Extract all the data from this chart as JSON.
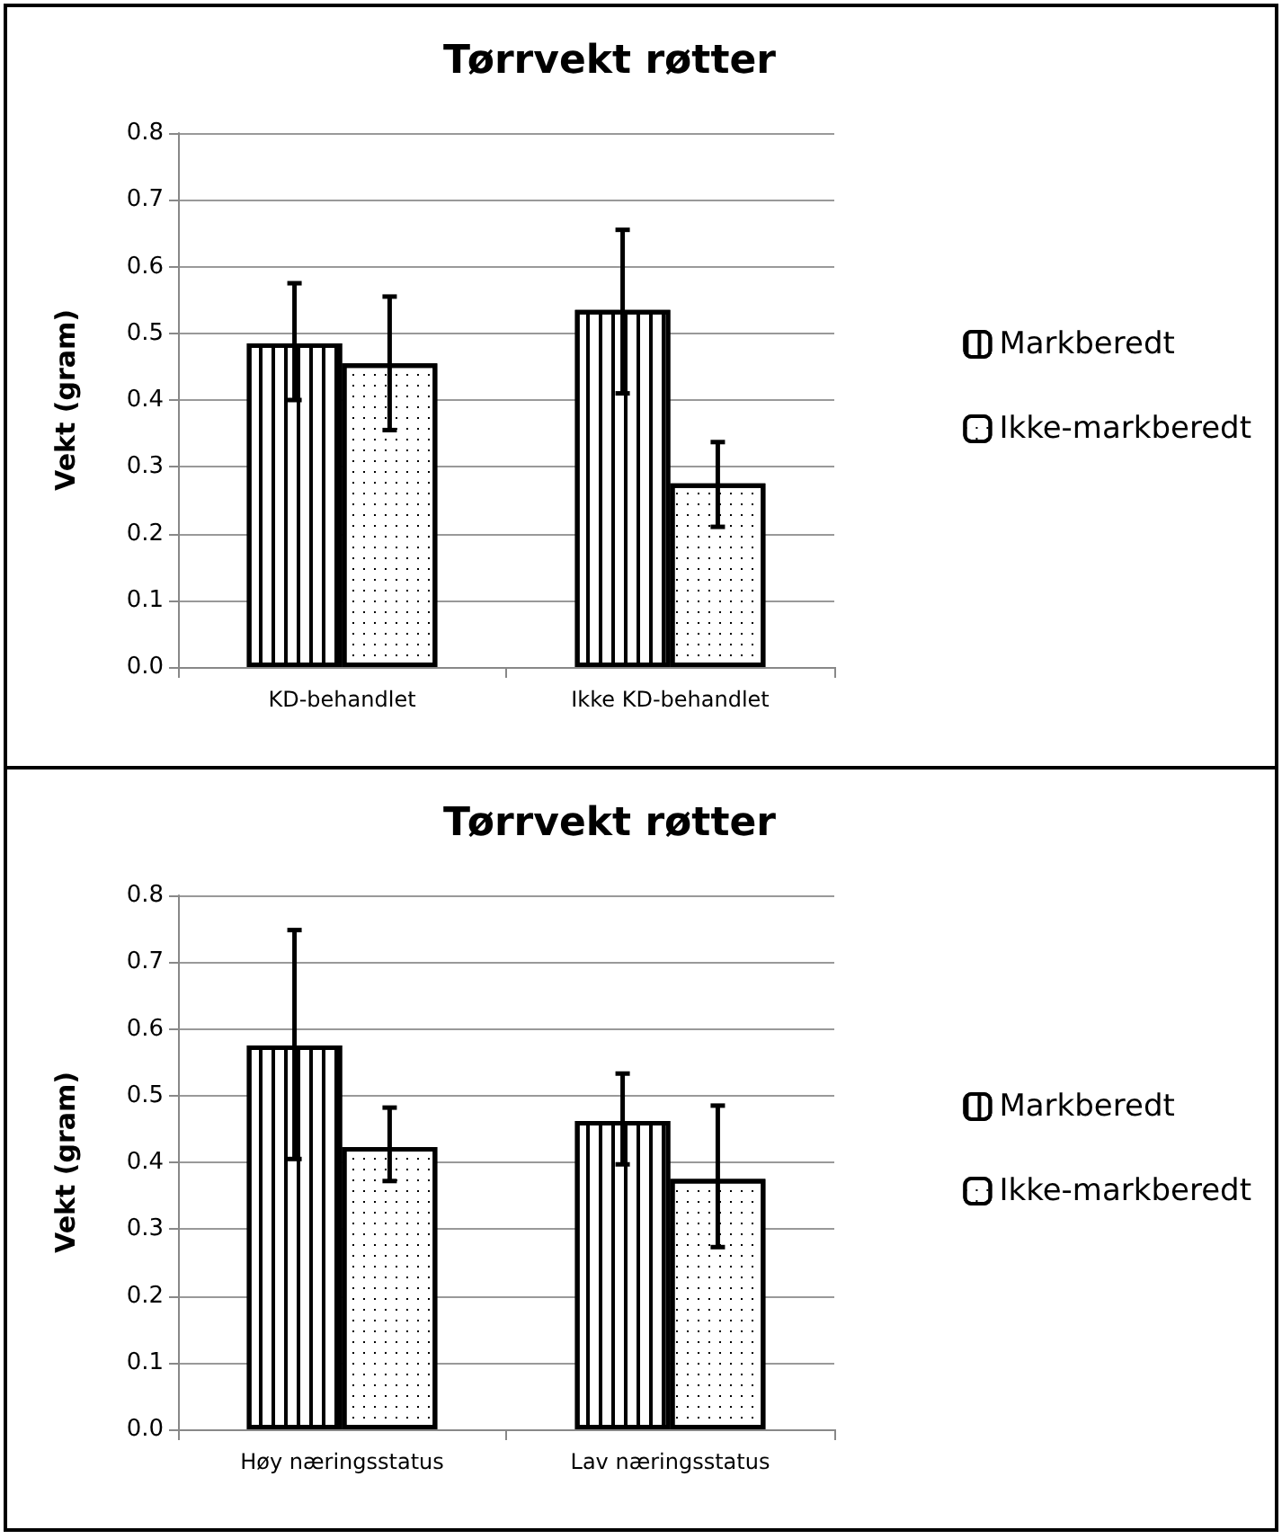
{
  "chart_data": [
    {
      "type": "bar",
      "title": "Tørrvekt røtter",
      "ylabel": "Vekt (gram)",
      "categories": [
        "KD-behandlet",
        "Ikke KD-behandlet"
      ],
      "series": [
        {
          "name": "Markberedt",
          "color": "#ffffff",
          "values": [
            0.485,
            0.535
          ],
          "errors": [
            [
              0.4,
              0.575
            ],
            [
              0.41,
              0.655
            ]
          ]
        },
        {
          "name": "Ikke-markberedt",
          "color": "#ffffff",
          "values": [
            0.455,
            0.275
          ],
          "errors": [
            [
              0.355,
              0.555
            ],
            [
              0.21,
              0.337
            ]
          ]
        }
      ],
      "ylim": [
        0,
        0.8
      ],
      "yticks": [
        {
          "value": 0,
          "label": "0.0"
        },
        0.1,
        0.2,
        0.3,
        0.4,
        0.5,
        0.6,
        0.7,
        0.8
      ],
      "grid": "y",
      "legend": "right"
    },
    {
      "type": "bar",
      "title": "Tørrvekt røtter",
      "ylabel": "Vekt (gram)",
      "categories": [
        "Høy næringsstatus",
        "Lav næringsstatus"
      ],
      "series": [
        {
          "name": "Markberedt",
          "color": "#ffffff",
          "values": [
            0.575,
            0.462
          ],
          "errors": [
            [
              0.405,
              0.748
            ],
            [
              0.397,
              0.533
            ]
          ]
        },
        {
          "name": "Ikke-markberedt",
          "color": "#ffffff",
          "values": [
            0.423,
            0.375
          ],
          "errors": [
            [
              0.372,
              0.482
            ],
            [
              0.273,
              0.485
            ]
          ]
        }
      ],
      "ylim": [
        0,
        0.8
      ],
      "yticks": [
        {
          "value": 0,
          "label": "0.0"
        },
        0.1,
        0.2,
        0.3,
        0.4,
        0.5,
        0.6,
        0.7,
        0.8
      ],
      "grid": "y",
      "legend": "right"
    }
  ]
}
